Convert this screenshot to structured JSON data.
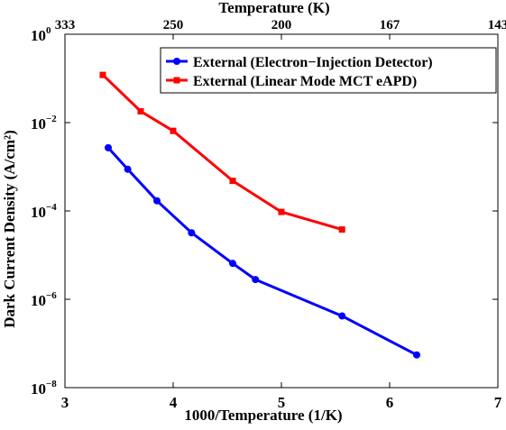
{
  "chart_data": {
    "type": "line",
    "xlabel": "1000/Temperature (1/K)",
    "ylabel": "Dark Current Density (A/cm²)",
    "top_axis_label": "Temperature (K)",
    "xlim": [
      3,
      7
    ],
    "ylim": [
      1e-08,
      1
    ],
    "yscale": "log",
    "x_ticks": [
      3,
      4,
      5,
      6,
      7
    ],
    "x_tick_labels": [
      "3",
      "4",
      "5",
      "6",
      "7"
    ],
    "y_ticks": [
      1e-08,
      1e-06,
      0.0001,
      0.01,
      1
    ],
    "y_tick_labels": [
      {
        "base": "10",
        "exp": "−8"
      },
      {
        "base": "10",
        "exp": "−6"
      },
      {
        "base": "10",
        "exp": "−4"
      },
      {
        "base": "10",
        "exp": "−2"
      },
      {
        "base": "10",
        "exp": "0"
      }
    ],
    "top_ticks": [
      3,
      4,
      5,
      6,
      7
    ],
    "top_tick_labels": [
      "333",
      "250",
      "200",
      "167",
      "143"
    ],
    "legend_position": "top-right",
    "grid": false,
    "series": [
      {
        "name": "External (Electron−Injection Detector)",
        "color": "#0000ff",
        "marker": "circle",
        "x": [
          3.4,
          3.58,
          3.85,
          4.17,
          4.55,
          4.76,
          5.56,
          6.25
        ],
        "y": [
          0.0027,
          0.00088,
          0.00017,
          3.2e-05,
          6.5e-06,
          2.8e-06,
          4.2e-07,
          5.5e-08
        ]
      },
      {
        "name": "External (Linear Mode MCT eAPD)",
        "color": "#ff0000",
        "marker": "square",
        "x": [
          3.35,
          3.7,
          4.0,
          4.55,
          5.0,
          5.56
        ],
        "y": [
          0.12,
          0.018,
          0.0065,
          0.00048,
          9.5e-05,
          3.8e-05
        ]
      }
    ]
  }
}
